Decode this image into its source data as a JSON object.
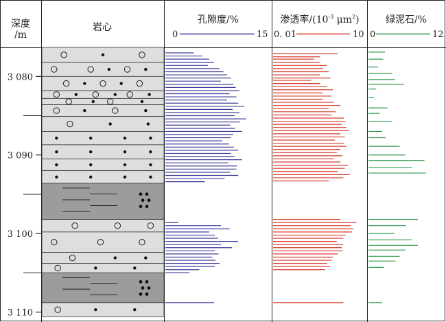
{
  "headers": {
    "depth": "深度",
    "depth_unit": "/m",
    "core": "岩心",
    "porosity": "孔隙度/%",
    "porosity_min": "0",
    "porosity_max": "15",
    "permeability_prefix": "渗透率/(10",
    "permeability_exp": "-3",
    "permeability_unit": " μm",
    "permeability_unit_exp": "2",
    "permeability_suffix": ")",
    "permeability_min": "0. 01",
    "permeability_max": "10",
    "chlorite": "绿泥石/%",
    "chlorite_min": "0",
    "chlorite_max": "12"
  },
  "chart_data": {
    "type": "bar",
    "depth_axis": {
      "min": 3076.3,
      "max": 3111.0,
      "major_ticks": [
        3080,
        3090,
        3100,
        3110
      ],
      "major_labels": [
        "3 080",
        "3 090",
        "3 100",
        "3 110"
      ],
      "minor_ticks": [
        3085,
        3095,
        3105
      ]
    },
    "colors": {
      "porosity": "#3b3b9c",
      "permeability": "#d83a2c",
      "chlorite": "#2c9a4a"
    },
    "core_layers": [
      {
        "top": 3076.3,
        "bottom": 3078.2,
        "lithology": "sandstone",
        "circles": [
          0.18,
          0.82
        ],
        "dots": [
          0.5
        ]
      },
      {
        "top": 3078.2,
        "bottom": 3080.0,
        "lithology": "sandstone",
        "circles": [
          0.1,
          0.4,
          0.7
        ],
        "dots": [
          0.55,
          0.85
        ]
      },
      {
        "top": 3080.0,
        "bottom": 3081.8,
        "lithology": "sandstone",
        "circles": [
          0.2,
          0.5,
          0.8
        ],
        "dots": [
          0.35,
          0.65
        ]
      },
      {
        "top": 3081.8,
        "bottom": 3082.8,
        "lithology": "sandstone",
        "circles": [
          0.12,
          0.44,
          0.72
        ],
        "dots": [
          0.28,
          0.6,
          0.88
        ]
      },
      {
        "top": 3082.8,
        "bottom": 3083.6,
        "lithology": "sandstone",
        "circles": [
          0.22,
          0.56
        ],
        "dots": [
          0.42,
          0.82
        ]
      },
      {
        "top": 3083.6,
        "bottom": 3085.1,
        "lithology": "sandstone",
        "circles": [
          0.12,
          0.6
        ],
        "dots": [
          0.35,
          0.85
        ]
      },
      {
        "top": 3085.1,
        "bottom": 3087.0,
        "lithology": "sandstone",
        "circles": [
          0.23
        ],
        "dots": [
          0.56,
          0.87
        ]
      },
      {
        "top": 3087.0,
        "bottom": 3088.7,
        "lithology": "sandstone",
        "circles": [],
        "dots": [
          0.12,
          0.4,
          0.68,
          0.89
        ]
      },
      {
        "top": 3088.7,
        "bottom": 3090.5,
        "lithology": "sandstone",
        "circles": [],
        "dots": [
          0.12,
          0.4,
          0.68,
          0.89
        ]
      },
      {
        "top": 3090.5,
        "bottom": 3092.0,
        "lithology": "sandstone",
        "circles": [],
        "dots": [
          0.12,
          0.4,
          0.68,
          0.89
        ]
      },
      {
        "top": 3092.0,
        "bottom": 3093.6,
        "lithology": "sandstone",
        "circles": [],
        "dots": [
          0.12,
          0.4,
          0.68,
          0.89
        ]
      },
      {
        "top": 3093.6,
        "bottom": 3098.2,
        "lithology": "mudstone",
        "circles": [],
        "dots": []
      },
      {
        "top": 3098.2,
        "bottom": 3099.8,
        "lithology": "sandstone",
        "circles": [
          0.27,
          0.62,
          0.89
        ],
        "dots": []
      },
      {
        "top": 3099.8,
        "bottom": 3102.4,
        "lithology": "sandstone",
        "circles": [
          0.1,
          0.48,
          0.82
        ],
        "dots": []
      },
      {
        "top": 3102.4,
        "bottom": 3103.8,
        "lithology": "sandstone",
        "circles": [
          0.25
        ],
        "dots": [
          0.6,
          0.85
        ]
      },
      {
        "top": 3103.8,
        "bottom": 3105.0,
        "lithology": "sandstone",
        "circles": [
          0.13
        ],
        "dots": [
          0.44,
          0.76
        ]
      },
      {
        "top": 3105.0,
        "bottom": 3108.8,
        "lithology": "mudstone",
        "circles": [],
        "dots": []
      },
      {
        "top": 3108.8,
        "bottom": 3110.6,
        "lithology": "sandstone",
        "circles": [
          0.13
        ],
        "dots": [
          0.44,
          0.76
        ]
      }
    ],
    "porosity": {
      "depths": [
        3077.0,
        3077.4,
        3077.8,
        3078.2,
        3078.6,
        3079.0,
        3079.4,
        3079.8,
        3080.2,
        3080.6,
        3081.0,
        3081.4,
        3081.8,
        3082.2,
        3082.6,
        3083.0,
        3083.4,
        3083.8,
        3084.2,
        3084.6,
        3085.0,
        3085.4,
        3085.8,
        3086.2,
        3086.6,
        3087.0,
        3087.4,
        3087.8,
        3088.2,
        3088.6,
        3089.0,
        3089.4,
        3089.8,
        3090.2,
        3090.6,
        3091.0,
        3091.4,
        3091.8,
        3092.2,
        3092.6,
        3093.0,
        3093.4,
        3098.6,
        3099.0,
        3099.4,
        3099.8,
        3100.2,
        3100.6,
        3101.0,
        3101.4,
        3101.8,
        3102.2,
        3102.6,
        3103.0,
        3103.4,
        3103.8,
        3104.2,
        3104.6,
        3105.0,
        3108.8
      ],
      "values": [
        4.6,
        6.0,
        7.1,
        7.9,
        6.9,
        8.8,
        9.4,
        10.0,
        10.6,
        9.0,
        11.0,
        11.4,
        12.0,
        10.4,
        11.5,
        10.0,
        11.8,
        12.8,
        10.9,
        12.0,
        11.2,
        13.1,
        12.1,
        10.5,
        11.3,
        12.4,
        11.0,
        10.6,
        9.2,
        10.3,
        11.1,
        11.8,
        10.6,
        11.2,
        12.4,
        10.2,
        11.6,
        11.5,
        10.5,
        11.8,
        9.6,
        6.4,
        2.1,
        9.0,
        10.4,
        7.1,
        8.0,
        8.5,
        11.8,
        9.0,
        10.8,
        8.0,
        8.6,
        7.6,
        8.1,
        8.8,
        8.0,
        5.5,
        3.9,
        7.9
      ]
    },
    "permeability": {
      "depths": [
        3077.1,
        3077.5,
        3077.8,
        3078.2,
        3078.6,
        3079.0,
        3079.4,
        3079.8,
        3080.2,
        3080.5,
        3080.9,
        3081.3,
        3081.7,
        3082.1,
        3082.5,
        3082.9,
        3083.3,
        3083.7,
        3084.1,
        3084.5,
        3084.9,
        3085.3,
        3085.7,
        3086.1,
        3086.5,
        3086.9,
        3087.3,
        3087.7,
        3088.1,
        3088.5,
        3088.9,
        3089.3,
        3089.7,
        3090.1,
        3090.5,
        3090.9,
        3091.3,
        3091.7,
        3092.1,
        3092.5,
        3092.9,
        3093.3,
        3098.2,
        3098.6,
        3099.0,
        3099.4,
        3099.8,
        3100.2,
        3100.6,
        3101.0,
        3101.4,
        3101.8,
        3102.2,
        3102.6,
        3103.0,
        3103.4,
        3103.8,
        3104.2,
        3104.6,
        3108.8
      ],
      "values": [
        1.6,
        0.4,
        0.25,
        0.4,
        0.7,
        0.5,
        0.8,
        0.4,
        0.9,
        0.2,
        0.4,
        0.7,
        1.1,
        0.5,
        1.0,
        0.5,
        1.2,
        2.0,
        0.8,
        1.4,
        1.0,
        2.6,
        3.0,
        2.2,
        3.2,
        4.0,
        2.0,
        2.8,
        1.3,
        2.6,
        3.2,
        2.0,
        1.5,
        2.3,
        1.2,
        2.0,
        3.6,
        2.8,
        1.6,
        4.2,
        2.5,
        0.8,
        2.0,
        7.0,
        4.5,
        5.5,
        5.0,
        3.0,
        2.5,
        1.5,
        2.5,
        2.2,
        2.4,
        1.6,
        1.1,
        1.0,
        0.7,
        0.9,
        0.6,
        2.5
      ]
    },
    "chlorite": {
      "depths": [
        3076.9,
        3077.8,
        3078.8,
        3079.6,
        3080.4,
        3081.0,
        3081.6,
        3082.7,
        3084.0,
        3084.7,
        3085.7,
        3087.0,
        3087.8,
        3088.9,
        3090.0,
        3090.7,
        3091.6,
        3092.3,
        3098.2,
        3099.0,
        3100.0,
        3100.8,
        3101.5,
        3102.1,
        3102.9,
        3103.5,
        3104.3,
        3108.8
      ],
      "values": [
        2.8,
        2.5,
        1.6,
        4.0,
        4.5,
        6.0,
        1.3,
        1.0,
        3.2,
        1.9,
        4.0,
        2.3,
        2.9,
        5.3,
        6.3,
        9.5,
        7.4,
        9.8,
        8.4,
        6.4,
        4.4,
        7.4,
        8.4,
        6.3,
        5.3,
        4.6,
        2.6,
        2.3
      ]
    }
  }
}
